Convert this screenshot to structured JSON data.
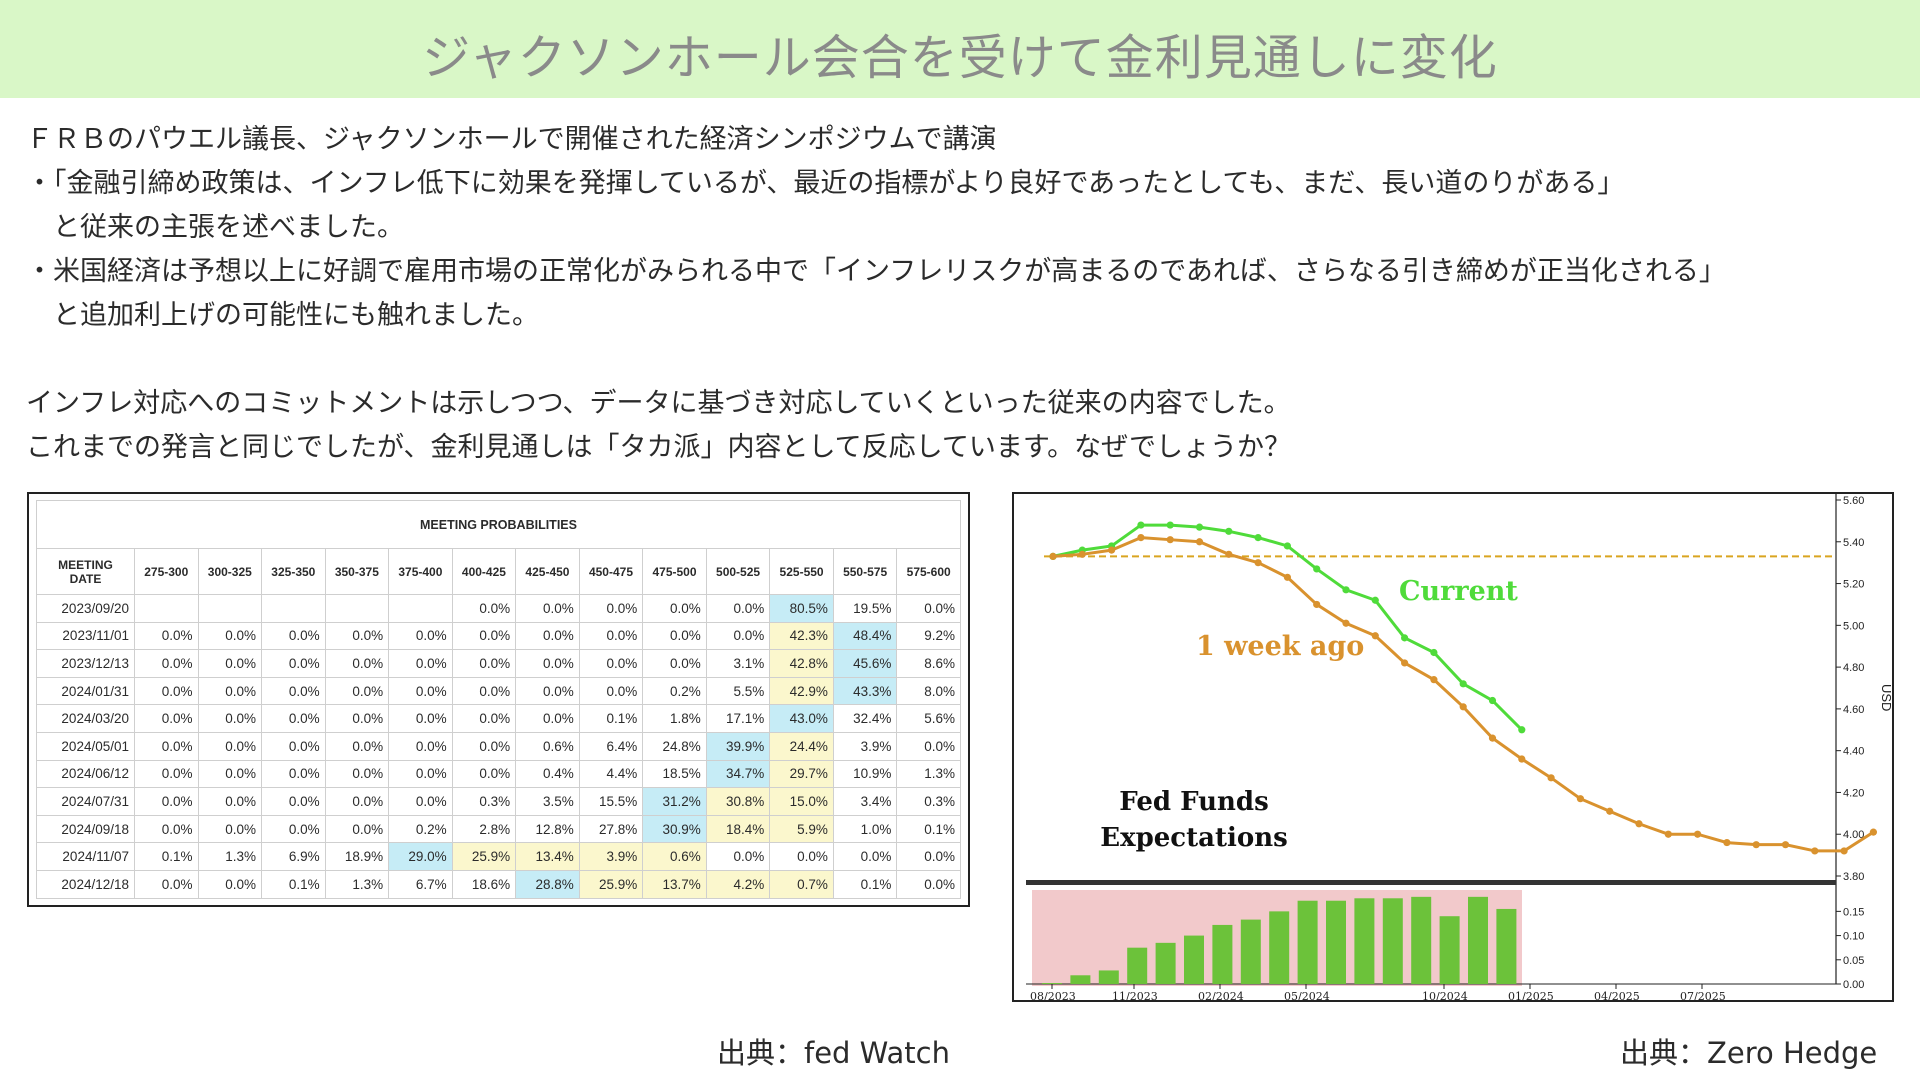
{
  "title": "ジャクソンホール会合を受けて金利見通しに変化",
  "paragraphs": {
    "p1": "ＦＲＢのパウエル議長、ジャクソンホールで開催された経済シンポジウムで講演",
    "p2": "・「金融引締め政策は、インフレ低下に効果を発揮しているが、最近の指標がより良好であったとしても、まだ、長い道のりがある」",
    "p3": "　と従来の主張を述べました。",
    "p4": "・米国経済は予想以上に好調で雇用市場の正常化がみられる中で「インフレリスクが高まるのであれば、さらなる引き締めが正当化される」",
    "p5": "　と追加利上げの可能性にも触れました。",
    "p6": "インフレ対応へのコミットメントは示しつつ、データに基づき対応していくといった従来の内容でした。",
    "p7": "これまでの発言と同じでしたが、金利見通しは「タカ派」内容として反応しています。なぜでしょうか？"
  },
  "table": {
    "title": "MEETING PROBABILITIES",
    "headers": [
      "MEETING DATE",
      "275-300",
      "300-325",
      "325-350",
      "350-375",
      "375-400",
      "400-425",
      "425-450",
      "450-475",
      "475-500",
      "500-525",
      "525-550",
      "550-575",
      "575-600"
    ],
    "rows": [
      [
        "2023/09/20",
        "",
        "",
        "",
        "",
        "",
        "0.0%",
        "0.0%",
        "0.0%",
        "0.0%",
        "0.0%",
        "80.5%",
        "19.5%",
        "0.0%"
      ],
      [
        "2023/11/01",
        "0.0%",
        "0.0%",
        "0.0%",
        "0.0%",
        "0.0%",
        "0.0%",
        "0.0%",
        "0.0%",
        "0.0%",
        "0.0%",
        "42.3%",
        "48.4%",
        "9.2%"
      ],
      [
        "2023/12/13",
        "0.0%",
        "0.0%",
        "0.0%",
        "0.0%",
        "0.0%",
        "0.0%",
        "0.0%",
        "0.0%",
        "0.0%",
        "3.1%",
        "42.8%",
        "45.6%",
        "8.6%"
      ],
      [
        "2024/01/31",
        "0.0%",
        "0.0%",
        "0.0%",
        "0.0%",
        "0.0%",
        "0.0%",
        "0.0%",
        "0.0%",
        "0.2%",
        "5.5%",
        "42.9%",
        "43.3%",
        "8.0%"
      ],
      [
        "2024/03/20",
        "0.0%",
        "0.0%",
        "0.0%",
        "0.0%",
        "0.0%",
        "0.0%",
        "0.0%",
        "0.1%",
        "1.8%",
        "17.1%",
        "43.0%",
        "32.4%",
        "5.6%"
      ],
      [
        "2024/05/01",
        "0.0%",
        "0.0%",
        "0.0%",
        "0.0%",
        "0.0%",
        "0.0%",
        "0.6%",
        "6.4%",
        "24.8%",
        "39.9%",
        "24.4%",
        "3.9%",
        "0.0%"
      ],
      [
        "2024/06/12",
        "0.0%",
        "0.0%",
        "0.0%",
        "0.0%",
        "0.0%",
        "0.0%",
        "0.4%",
        "4.4%",
        "18.5%",
        "34.7%",
        "29.7%",
        "10.9%",
        "1.3%"
      ],
      [
        "2024/07/31",
        "0.0%",
        "0.0%",
        "0.0%",
        "0.0%",
        "0.0%",
        "0.3%",
        "3.5%",
        "15.5%",
        "31.2%",
        "30.8%",
        "15.0%",
        "3.4%",
        "0.3%"
      ],
      [
        "2024/09/18",
        "0.0%",
        "0.0%",
        "0.0%",
        "0.0%",
        "0.2%",
        "2.8%",
        "12.8%",
        "27.8%",
        "30.9%",
        "18.4%",
        "5.9%",
        "1.0%",
        "0.1%"
      ],
      [
        "2024/11/07",
        "0.1%",
        "1.3%",
        "6.9%",
        "18.9%",
        "29.0%",
        "25.9%",
        "13.4%",
        "3.9%",
        "0.6%",
        "0.0%",
        "0.0%",
        "0.0%",
        "0.0%"
      ],
      [
        "2024/12/18",
        "0.0%",
        "0.0%",
        "0.1%",
        "1.3%",
        "6.7%",
        "18.6%",
        "28.8%",
        "25.9%",
        "13.7%",
        "4.2%",
        "0.7%",
        "0.1%",
        "0.0%"
      ]
    ],
    "highlights": [
      [
        null,
        null,
        null,
        null,
        null,
        null,
        null,
        null,
        null,
        null,
        null,
        "b",
        null,
        null
      ],
      [
        null,
        null,
        null,
        null,
        null,
        null,
        null,
        null,
        null,
        null,
        null,
        "y",
        "b",
        null
      ],
      [
        null,
        null,
        null,
        null,
        null,
        null,
        null,
        null,
        null,
        null,
        null,
        "y",
        "b",
        null
      ],
      [
        null,
        null,
        null,
        null,
        null,
        null,
        null,
        null,
        null,
        null,
        null,
        "y",
        "b",
        null
      ],
      [
        null,
        null,
        null,
        null,
        null,
        null,
        null,
        null,
        null,
        null,
        null,
        "b",
        null,
        null
      ],
      [
        null,
        null,
        null,
        null,
        null,
        null,
        null,
        null,
        null,
        null,
        "b",
        "y",
        null,
        null
      ],
      [
        null,
        null,
        null,
        null,
        null,
        null,
        null,
        null,
        null,
        null,
        "b",
        "y",
        null,
        null
      ],
      [
        null,
        null,
        null,
        null,
        null,
        null,
        null,
        null,
        null,
        "b",
        "y",
        "y",
        null,
        null
      ],
      [
        null,
        null,
        null,
        null,
        null,
        null,
        null,
        null,
        null,
        "b",
        "y",
        "y",
        null,
        null
      ],
      [
        null,
        null,
        null,
        null,
        null,
        "b",
        "y",
        "y",
        "y",
        "y",
        null,
        null,
        null,
        null
      ],
      [
        null,
        null,
        null,
        null,
        null,
        null,
        null,
        "b",
        "y",
        "y",
        "y",
        "y",
        null,
        null
      ]
    ],
    "colors": {
      "blue": "#c6ecf6",
      "yellow": "#fbf7cd"
    }
  },
  "chart_data": {
    "type": "line",
    "title": "Fed Funds Expectations",
    "title_lines": [
      "Fed Funds",
      "Expectations"
    ],
    "ylabel": "USD",
    "ylim": [
      3.8,
      5.6
    ],
    "y_ticks": [
      "5.60",
      "5.40",
      "5.20",
      "5.00",
      "4.80",
      "4.60",
      "4.40",
      "4.20",
      "4.00",
      "3.80"
    ],
    "x_tick_labels": [
      "08/2023",
      "11/2023",
      "02/2024",
      "05/2024",
      "10/2024",
      "01/2025",
      "04/2025",
      "07/2025"
    ],
    "series": [
      {
        "name": "Current",
        "color": "#4fdb3a",
        "values": [
          5.33,
          5.36,
          5.38,
          5.48,
          5.48,
          5.47,
          5.45,
          5.42,
          5.38,
          5.27,
          5.17,
          5.12,
          4.94,
          4.87,
          4.72,
          4.64,
          4.5
        ]
      },
      {
        "name": "1 week ago",
        "color": "#d9922e",
        "values": [
          5.33,
          5.34,
          5.36,
          5.42,
          5.41,
          5.4,
          5.34,
          5.3,
          5.23,
          5.1,
          5.01,
          4.95,
          4.82,
          4.74,
          4.61,
          4.46,
          4.36,
          4.27,
          4.17,
          4.11,
          4.05,
          4.0,
          4.0,
          3.96,
          3.95,
          3.95,
          3.92,
          3.92,
          4.01
        ]
      }
    ],
    "reference_line": 5.33,
    "bars": {
      "y_ticks": [
        "0.15",
        "0.10",
        "0.05",
        "0.00"
      ],
      "ylim": [
        0,
        0.19
      ],
      "values": [
        0.002,
        0.018,
        0.028,
        0.075,
        0.085,
        0.1,
        0.122,
        0.133,
        0.15,
        0.172,
        0.172,
        0.177,
        0.177,
        0.18,
        0.14,
        0.18,
        0.155
      ],
      "bar_color": "#6cc23a",
      "band_color": "#f2c9cb"
    }
  },
  "sources": {
    "left": "出典：fed Watch",
    "right": "出典：Zero Hedge"
  }
}
